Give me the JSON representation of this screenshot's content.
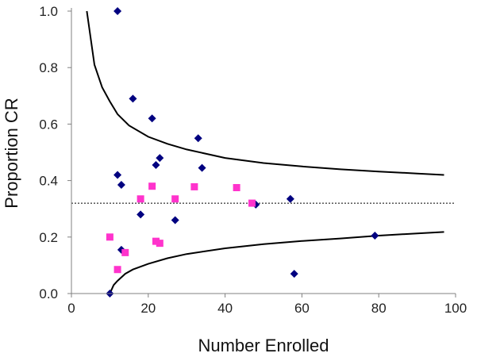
{
  "chart_data": {
    "type": "scatter",
    "title": "",
    "xlabel": "Number Enrolled",
    "ylabel": "Proportion CR",
    "xlim": [
      0,
      100
    ],
    "ylim": [
      0.0,
      1.0
    ],
    "xticks": [
      0,
      20,
      40,
      60,
      80,
      100
    ],
    "xtick_labels": [
      "0",
      "20",
      "40",
      "60",
      "80",
      "100"
    ],
    "yticks": [
      0.0,
      0.2,
      0.4,
      0.6,
      0.8,
      1.0
    ],
    "ytick_labels": [
      "0.0",
      "0.2",
      "0.4",
      "0.6",
      "0.8",
      "1.0"
    ],
    "grid": false,
    "legend": "none",
    "series": [
      {
        "marker": "diamond",
        "color": "#000080",
        "points": [
          {
            "x": 12,
            "y": 1.0
          },
          {
            "x": 16,
            "y": 0.69
          },
          {
            "x": 21,
            "y": 0.62
          },
          {
            "x": 33,
            "y": 0.55
          },
          {
            "x": 23,
            "y": 0.48
          },
          {
            "x": 22,
            "y": 0.455
          },
          {
            "x": 34,
            "y": 0.445
          },
          {
            "x": 12,
            "y": 0.42
          },
          {
            "x": 13,
            "y": 0.385
          },
          {
            "x": 18,
            "y": 0.28
          },
          {
            "x": 27,
            "y": 0.26
          },
          {
            "x": 48,
            "y": 0.315
          },
          {
            "x": 57,
            "y": 0.335
          },
          {
            "x": 79,
            "y": 0.205
          },
          {
            "x": 13,
            "y": 0.155
          },
          {
            "x": 58,
            "y": 0.07
          },
          {
            "x": 10,
            "y": 0.0
          }
        ]
      },
      {
        "marker": "square",
        "color": "#ff33cc",
        "points": [
          {
            "x": 21,
            "y": 0.38
          },
          {
            "x": 32,
            "y": 0.378
          },
          {
            "x": 43,
            "y": 0.375
          },
          {
            "x": 18,
            "y": 0.335
          },
          {
            "x": 27,
            "y": 0.335
          },
          {
            "x": 47,
            "y": 0.32
          },
          {
            "x": 10,
            "y": 0.2
          },
          {
            "x": 22,
            "y": 0.185
          },
          {
            "x": 23,
            "y": 0.178
          },
          {
            "x": 14,
            "y": 0.145
          },
          {
            "x": 12,
            "y": 0.085
          }
        ]
      }
    ],
    "reference_lines": [
      {
        "type": "horizontal",
        "y": 0.32,
        "style": "dotted",
        "color": "#000000"
      }
    ],
    "curves": [
      {
        "name": "upper-bound",
        "color": "#000000",
        "points": [
          [
            4,
            1.0
          ],
          [
            6,
            0.81
          ],
          [
            8,
            0.73
          ],
          [
            10,
            0.68
          ],
          [
            12,
            0.635
          ],
          [
            15,
            0.595
          ],
          [
            20,
            0.555
          ],
          [
            25,
            0.53
          ],
          [
            30,
            0.51
          ],
          [
            40,
            0.48
          ],
          [
            50,
            0.462
          ],
          [
            60,
            0.45
          ],
          [
            70,
            0.44
          ],
          [
            80,
            0.432
          ],
          [
            90,
            0.425
          ],
          [
            97,
            0.42
          ]
        ]
      },
      {
        "name": "lower-bound",
        "color": "#000000",
        "points": [
          [
            10,
            0.0
          ],
          [
            11,
            0.03
          ],
          [
            12,
            0.045
          ],
          [
            14,
            0.07
          ],
          [
            16,
            0.085
          ],
          [
            20,
            0.105
          ],
          [
            25,
            0.125
          ],
          [
            30,
            0.14
          ],
          [
            40,
            0.16
          ],
          [
            50,
            0.175
          ],
          [
            60,
            0.186
          ],
          [
            70,
            0.195
          ],
          [
            80,
            0.205
          ],
          [
            90,
            0.213
          ],
          [
            97,
            0.218
          ]
        ]
      }
    ]
  }
}
